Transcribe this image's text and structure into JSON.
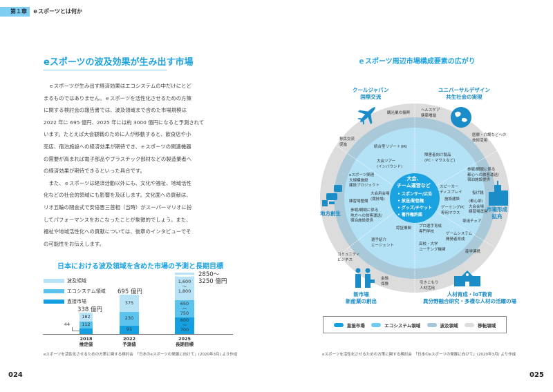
{
  "header": {
    "chapter": "第１章",
    "chapter_title": "ｅスポーツとは何か"
  },
  "left": {
    "title": "eスポーツの波及効果が生み出す市場",
    "body": [
      "　ｅスポーツが生み出す経済効果はエコシステムの中だけにとど",
      "まるものではありません。ｅスポーツを活性化させるための方策",
      "に関する検討会の報告書では、波及領域まで含めた市場規模は",
      "2022 年に 695 億円、2025 年には約 3000 億円になると予測されて",
      "います。たとえば大会観戦のために人が移動すると、飲食店や小",
      "売店、宿泊施設への経済効果が期待でき、ｅスポーツの関連機器",
      "の需要が高まれば電子部品やプラスチック部材などの製造業者へ",
      "の経済効果が期待できるといった具合です。",
      "　また、ｅスポーツは経済活動以外にも、文化や福祉、地域活性",
      "化などの社会的領域にも影響を及ぼします。文化面への貢献は、",
      "リオ五輪の閉会式で安倍晋三首相（当時）がスーパーマリオに扮",
      "してパフォーマンスをおこなったことが象徴的でしょう。また、",
      "福祉や地域活性化への貢献については、後章のインタビューでそ",
      "の可能性をお伝えします。"
    ],
    "footnote": "eスポーツを活性化させるための方策に関する検討会　「日本のeスポーツの発展に向けて」(2020年3月) より作成",
    "page": "024"
  },
  "chart_data": {
    "type": "bar",
    "stacked": true,
    "title": "日本における波及領域を含めた市場の予測と長期目標",
    "unit": "億円",
    "categories": [
      "2018\n推定値",
      "2022\n予測値",
      "2025\n長期目標"
    ],
    "category_labels": [
      [
        "2018",
        "推定値"
      ],
      [
        "2022",
        "予測値"
      ],
      [
        "2025",
        "長期目標"
      ]
    ],
    "series": [
      {
        "name": "直接市場",
        "color": "#14a0e0",
        "values": [
          44,
          91,
          650
        ],
        "labels": [
          "44",
          "91",
          "600\n〜\n700"
        ]
      },
      {
        "name": "エコシステム領域",
        "color": "#5cc3ee",
        "values": [
          112,
          230,
          700
        ],
        "labels": [
          "112",
          "230",
          "650\n〜\n750"
        ]
      },
      {
        "name": "波及領域",
        "color": "#b8e3f7",
        "values": [
          182,
          375,
          1700
        ],
        "labels": [
          "182",
          "375",
          "1,600\n〜\n1,800"
        ]
      }
    ],
    "totals": [
      "338 億円",
      "695 億円",
      "2850〜\n3250 億円"
    ]
  },
  "right": {
    "title": "ｅスポーツ周辺市場構成要素の広がり",
    "categories": [
      [
        "クールジャパン",
        "国際交流"
      ],
      [
        "ユニバーサルデザイン",
        "共生社会の実現"
      ],
      [
        "地方創生"
      ],
      [
        "市場形成",
        "拡充"
      ],
      [
        "新市場",
        "新産業の創出"
      ],
      [
        "人材育成・IoT教育",
        "異分野融合研究・多様な人材の活躍の場"
      ]
    ],
    "center": [
      "大会、",
      "チーム運営など",
      "• スポンサー/広告",
      "• 放送/配信権",
      "• グッズ/チケット",
      "• 著作権許諾"
    ],
    "labels": [
      "観光業の振興",
      "ヘルスケア\n健康増進",
      "移民交流\n促進",
      "統合型リゾート(IR)",
      "医療・介護などへの\n技術活用",
      "大会ツアー\n(インバウンド)",
      "障害者向け製品\n(PC・マウスなど)",
      "eスポーツ関連\n大規模施設\n建設プロジェクト",
      "参戦/観戦に係る\n都心への旅客運送/\n宿泊施設提供",
      "スピーカー\nディスプレイ",
      "大会用会場\n(競技場)",
      "練習場整備",
      "投げ銭",
      "施設建設",
      "(都心部)\n大会会場\n練習場運営",
      "ゲーミングPC\n専用マウス",
      "参戦/観戦に係る\n地方への旅客運送/\n宿泊施設提供",
      "専用チェア",
      "認証機関",
      "プロ選手育成\n専門学校",
      "ゲームシステム\n開発者育成",
      "選手紹介\nエージェント",
      "高校・大学\nコーチング機関",
      "産学連携",
      "コミュニティ\nビジネス",
      "金融\n保険",
      "引きこもり\n人材活用"
    ],
    "legend": [
      {
        "name": "直接市場",
        "color": "#14a0e0"
      },
      {
        "name": "エコシステム領域",
        "color": "#6fcbf2"
      },
      {
        "name": "波及領域",
        "color": "#a5c6d6"
      },
      {
        "name": "移転領域",
        "color": "#dcdcdc"
      }
    ],
    "footnote": "eスポーツを活性化させるための方策に関する検討会　「日本のeスポーツの発展に向けて」(2020年3月) より作成",
    "page": "025"
  }
}
